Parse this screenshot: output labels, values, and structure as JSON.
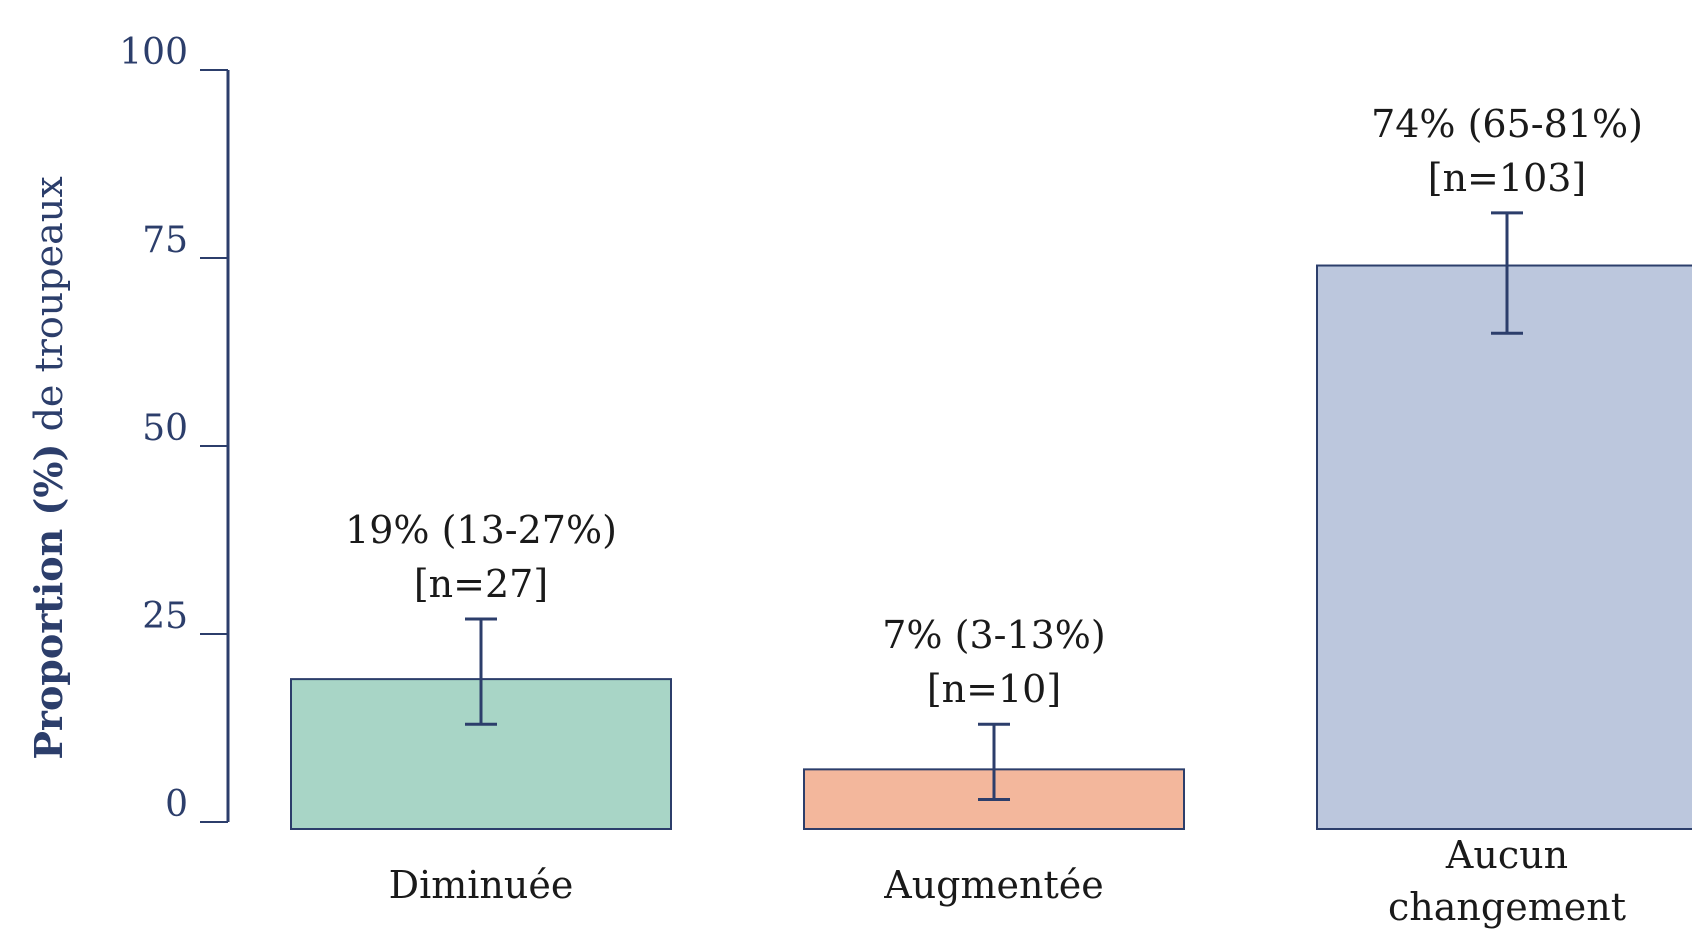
{
  "chart_data": {
    "type": "bar",
    "ylabel_bold": "Proportion (%)",
    "ylabel_rest": " de troupeaux",
    "ylim": [
      0,
      100
    ],
    "yticks": [
      "0",
      "25",
      "50",
      "75",
      "100"
    ],
    "ytick_values": [
      0,
      25,
      50,
      75,
      100
    ],
    "grid": false,
    "bars": [
      {
        "category_lines": [
          "Diminuée"
        ],
        "value": 19,
        "ci_low": 13,
        "ci_high": 27,
        "label_line1": "19% (13-27%)",
        "label_line2": "[n=27]",
        "color": "#a8d5c6"
      },
      {
        "category_lines": [
          "Augmentée"
        ],
        "value": 7,
        "ci_low": 3,
        "ci_high": 13,
        "label_line1": "7% (3-13%)",
        "label_line2": "[n=10]",
        "color": "#f3b79c"
      },
      {
        "category_lines": [
          "Aucun",
          "changement"
        ],
        "value": 74,
        "ci_low": 65,
        "ci_high": 81,
        "label_line1": "74% (65-81%)",
        "label_line2": "[n=103]",
        "color": "#bcc7dd"
      }
    ],
    "axis_color": "#2c3e6b",
    "bar_edge_color": "#2c3e6b",
    "errorbar_color": "#2c3e6b"
  }
}
